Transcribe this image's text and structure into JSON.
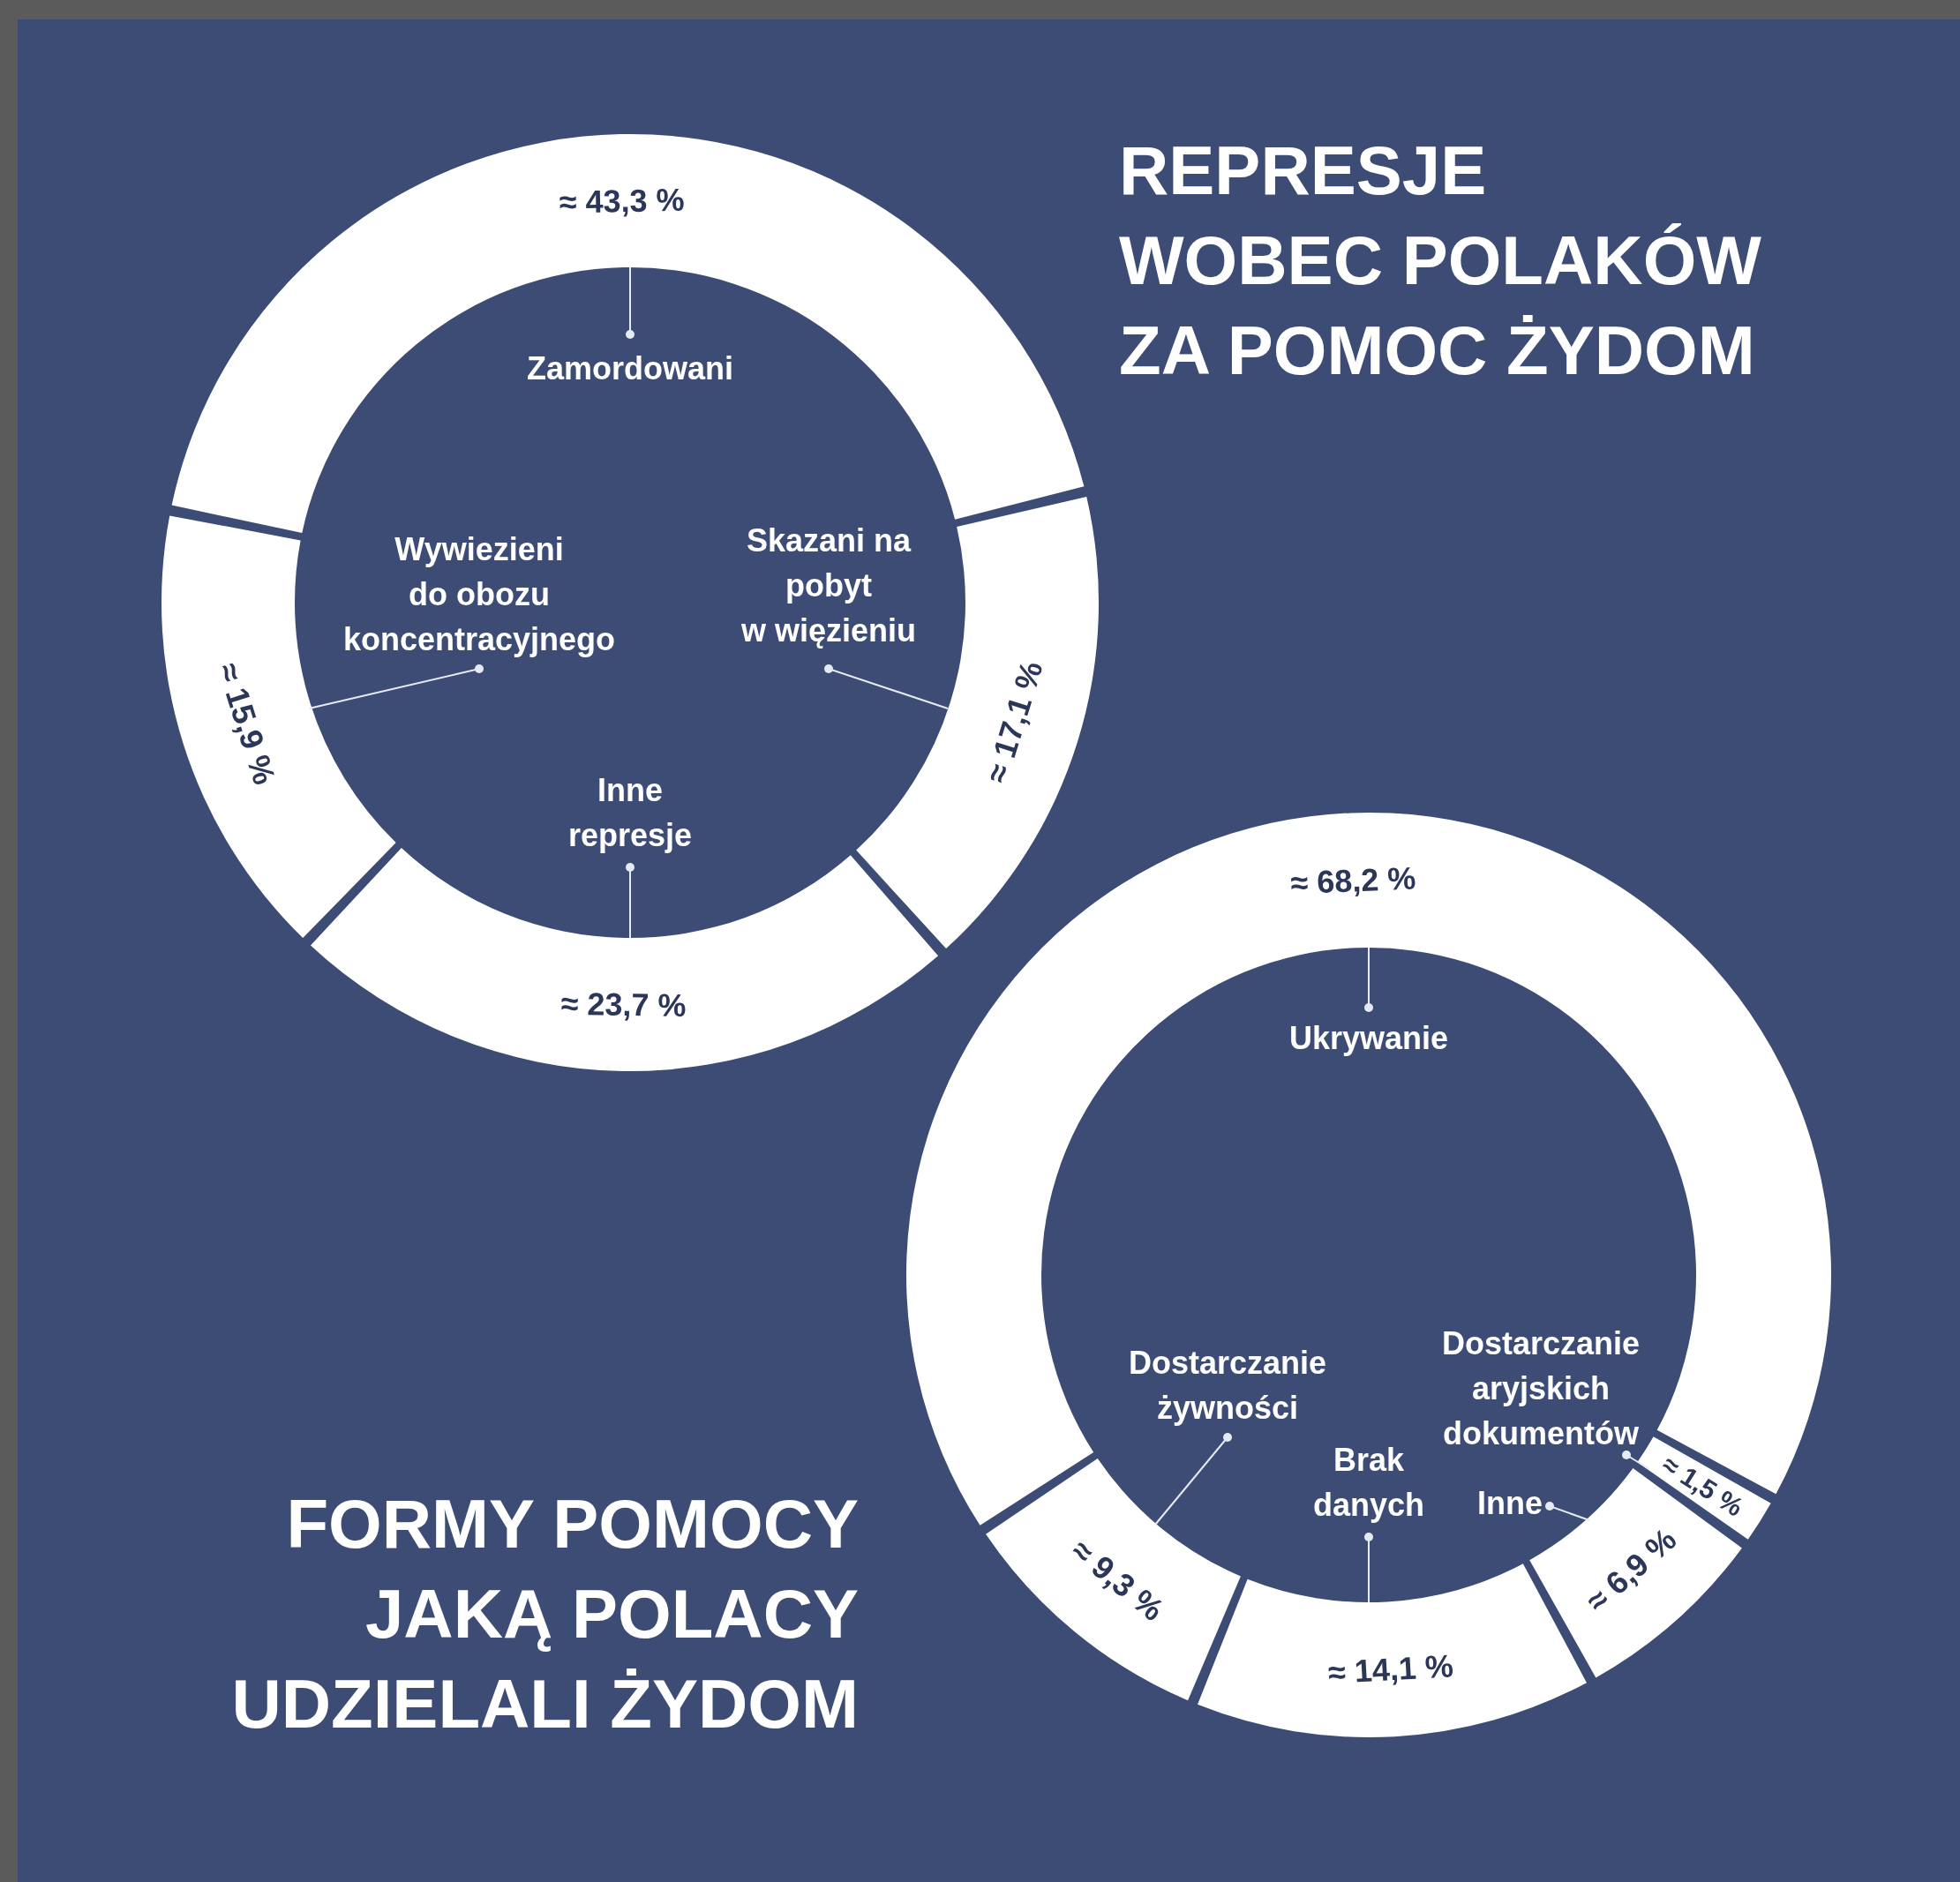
{
  "chart_data": [
    {
      "type": "donut",
      "title": "REPRESJE\nWOBEC POLAKÓW\nZA POMOC ŻYDOM",
      "categories": [
        "Zamordowani",
        "Skazani na\npobyt\nw więzieniu",
        "Inne\nrepresje",
        "Wywiezieni\ndo obozu\nkoncentracyjnego"
      ],
      "values": [
        43.3,
        17.1,
        23.7,
        15.9
      ],
      "value_labels": [
        "≈ 43,3 %",
        "≈ 17,1 %",
        "≈ 23,7 %",
        "≈ 15,9 %"
      ],
      "colors": [
        "#ffffff",
        "#ffffff",
        "#ffffff",
        "#ffffff"
      ],
      "legend": false
    },
    {
      "type": "donut",
      "title": "FORMY POMOCY\nJAKĄ POLACY\nUDZIELALI ŻYDOM",
      "categories": [
        "Ukrywanie",
        "Dostarczanie\naryjskich\ndokumentów",
        "Inne",
        "Brak\ndanych",
        "Dostarczanie\nżywności"
      ],
      "values": [
        68.2,
        1.5,
        6.9,
        14.1,
        9.3
      ],
      "value_labels": [
        "≈ 68,2 %",
        "≈ 1,5 %",
        "≈ 6,9 %",
        "≈ 14,1 %",
        "≈ 9,3 %"
      ],
      "colors": [
        "#ffffff",
        "#ffffff",
        "#ffffff",
        "#ffffff",
        "#ffffff"
      ],
      "legend": false
    }
  ]
}
